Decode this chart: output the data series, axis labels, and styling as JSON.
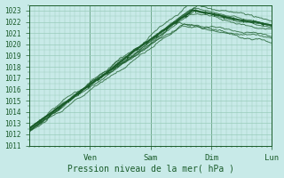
{
  "title": "",
  "xlabel": "Pression niveau de la mer( hPa )",
  "ylabel": "",
  "background_color": "#c8eae8",
  "plot_bg_color": "#c8eae8",
  "grid_color": "#99ccbb",
  "line_color": "#1a5c2a",
  "ylim": [
    1011,
    1023.5
  ],
  "yticks": [
    1011,
    1012,
    1013,
    1014,
    1015,
    1016,
    1017,
    1018,
    1019,
    1020,
    1021,
    1022,
    1023
  ],
  "xtick_labels": [
    "Ven",
    "Sam",
    "Dim",
    "Lun"
  ],
  "figsize": [
    3.2,
    2.0
  ],
  "dpi": 100
}
